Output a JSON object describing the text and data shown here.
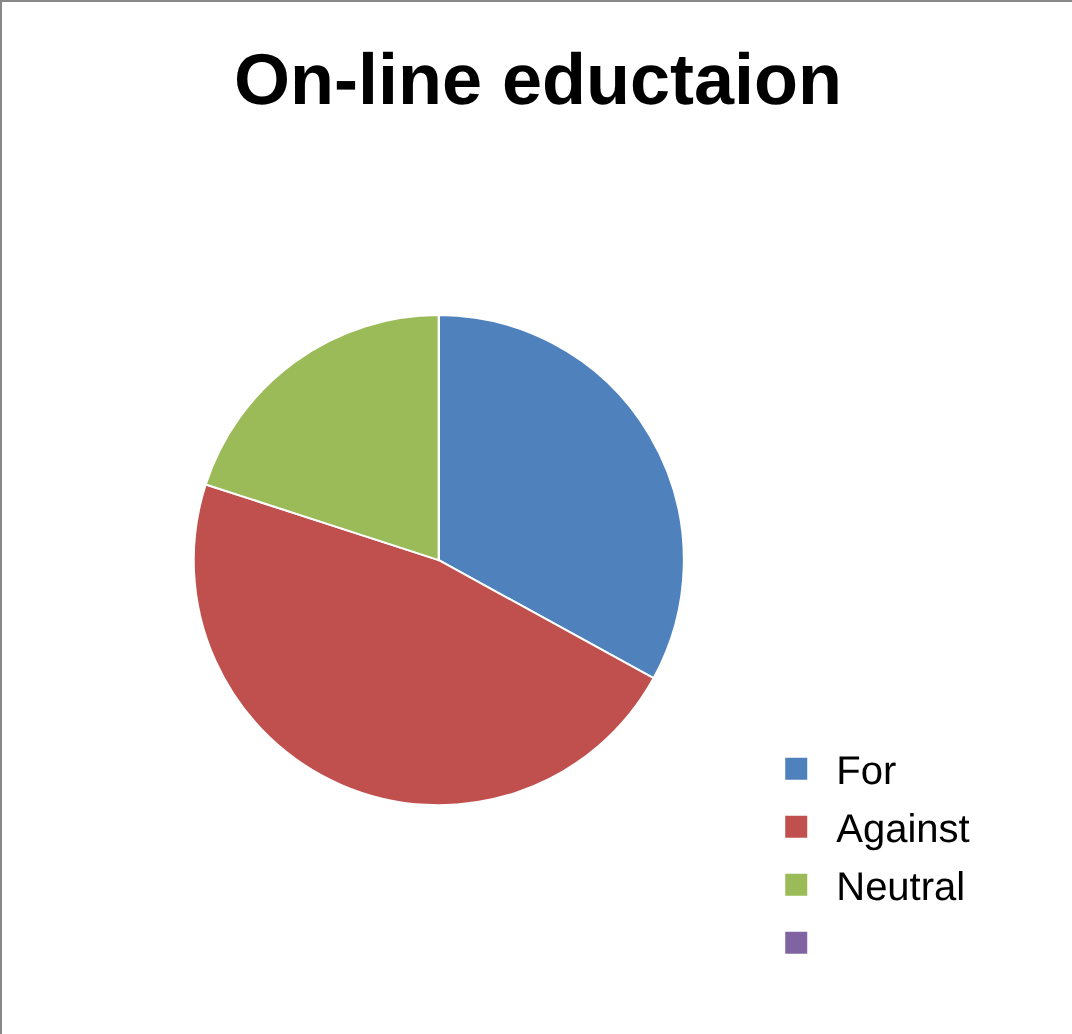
{
  "chart_data": {
    "type": "pie",
    "title": "On-line eductaion",
    "categories": [
      "For",
      "Against",
      "Neutral",
      null
    ],
    "values": [
      33,
      47,
      20,
      0
    ],
    "colors": [
      "#4f81bd",
      "#c0504d",
      "#9bbb59",
      "#8064a2"
    ],
    "legend": "right"
  }
}
